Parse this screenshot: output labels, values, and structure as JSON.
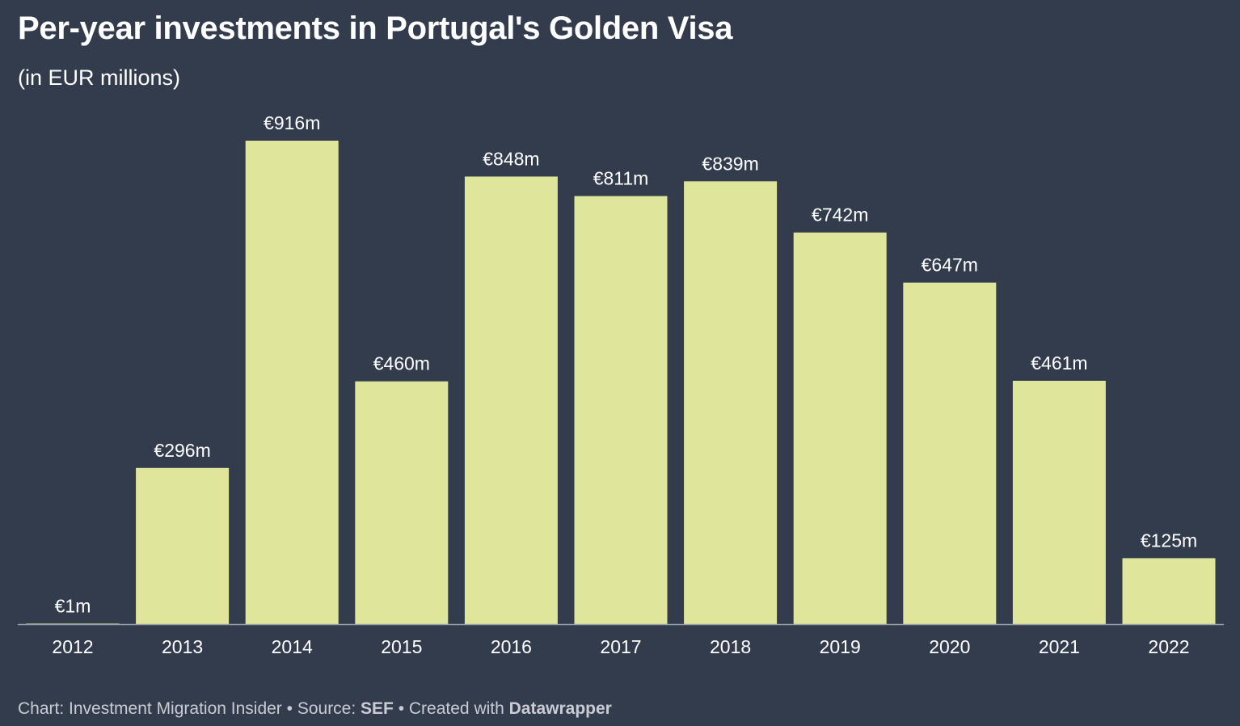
{
  "header": {
    "title": "Per-year investments in Portugal's Golden Visa",
    "subtitle": "(in EUR millions)"
  },
  "footer": {
    "chart_prefix": "Chart: Investment Migration Insider • Source: ",
    "source": "SEF",
    "created_prefix": " • Created with ",
    "tool": "Datawrapper"
  },
  "colors": {
    "background": "#333c4d",
    "bar": "#dfe59a",
    "axis": "#9aa0ab",
    "text": "#ffffff"
  },
  "chart_data": {
    "type": "bar",
    "title": "Per-year investments in Portugal's Golden Visa",
    "subtitle": "(in EUR millions)",
    "categories": [
      "2012",
      "2013",
      "2014",
      "2015",
      "2016",
      "2017",
      "2018",
      "2019",
      "2020",
      "2021",
      "2022"
    ],
    "values": [
      1,
      296,
      916,
      460,
      848,
      811,
      839,
      742,
      647,
      461,
      125
    ],
    "labels": [
      "€1m",
      "€296m",
      "€916m",
      "€460m",
      "€848m",
      "€811m",
      "€839m",
      "€742m",
      "€647m",
      "€461m",
      "€125m"
    ],
    "ylim": [
      0,
      916
    ],
    "grid": false,
    "legend": "none"
  }
}
